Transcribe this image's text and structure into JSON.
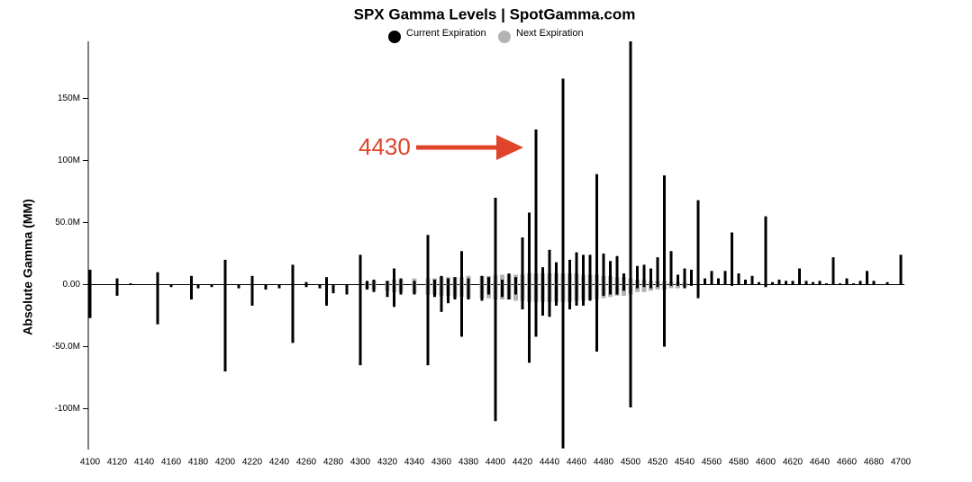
{
  "chart_data": {
    "type": "bar",
    "title": "SPX Gamma Levels | SpotGamma.com",
    "y_label": "Absolute Gamma (MM)",
    "annotation": "4430",
    "annotation_color": "#e0442a",
    "x": [
      4100,
      4120,
      4130,
      4150,
      4160,
      4175,
      4180,
      4190,
      4200,
      4210,
      4220,
      4230,
      4240,
      4250,
      4260,
      4270,
      4275,
      4280,
      4290,
      4300,
      4305,
      4310,
      4320,
      4325,
      4330,
      4340,
      4350,
      4355,
      4360,
      4365,
      4370,
      4375,
      4380,
      4390,
      4395,
      4400,
      4405,
      4410,
      4415,
      4420,
      4425,
      4430,
      4435,
      4440,
      4445,
      4450,
      4455,
      4460,
      4465,
      4470,
      4475,
      4480,
      4485,
      4490,
      4495,
      4500,
      4505,
      4510,
      4515,
      4520,
      4525,
      4530,
      4535,
      4540,
      4545,
      4550,
      4555,
      4560,
      4565,
      4570,
      4575,
      4580,
      4585,
      4590,
      4595,
      4600,
      4605,
      4610,
      4615,
      4620,
      4625,
      4630,
      4635,
      4640,
      4645,
      4650,
      4655,
      4660,
      4665,
      4670,
      4675,
      4680,
      4690,
      4700
    ],
    "series": [
      {
        "name": "Next Expiration",
        "color": "#b3b3b3",
        "values": [
          null,
          null,
          null,
          null,
          null,
          null,
          null,
          null,
          null,
          null,
          null,
          null,
          null,
          null,
          null,
          null,
          null,
          null,
          null,
          null,
          2,
          3,
          3,
          4,
          4,
          5,
          5,
          5,
          6,
          6,
          6,
          6,
          7,
          7,
          7,
          8,
          8,
          8,
          8,
          8,
          9,
          9,
          9,
          9,
          9,
          9,
          9,
          9,
          8,
          8,
          8,
          7,
          7,
          6,
          6,
          5,
          4,
          4,
          3,
          3,
          3,
          2,
          2,
          2,
          null,
          null,
          null,
          null,
          null,
          null,
          null,
          null,
          null,
          null,
          null,
          null,
          null,
          null,
          null,
          null,
          null,
          null,
          null,
          null,
          null,
          null,
          null,
          null,
          null,
          null,
          null,
          null,
          null,
          null
        ],
        "put_values": [
          null,
          null,
          null,
          null,
          null,
          null,
          null,
          null,
          null,
          null,
          null,
          null,
          null,
          null,
          null,
          null,
          null,
          null,
          null,
          null,
          -3,
          -4,
          -5,
          -6,
          -6,
          -7,
          -8,
          -8,
          -9,
          -9,
          -10,
          -10,
          -11,
          -11,
          -11,
          -12,
          -12,
          -12,
          -13,
          -13,
          -14,
          -14,
          -14,
          -14,
          -14,
          -14,
          -14,
          -13,
          -13,
          -12,
          -12,
          -11,
          -10,
          -9,
          -9,
          -8,
          -6,
          -6,
          -5,
          -4,
          -4,
          -3,
          -3,
          -2,
          null,
          null,
          null,
          null,
          null,
          null,
          null,
          null,
          null,
          null,
          null,
          null,
          null,
          null,
          null,
          null,
          null,
          null,
          null,
          null,
          null,
          null,
          null,
          null,
          null,
          null,
          null,
          null,
          null,
          null
        ]
      },
      {
        "name": "Current Expiration",
        "color": "#000000",
        "values": [
          12,
          5,
          1,
          10,
          0,
          7,
          0,
          0,
          20,
          0,
          7,
          0,
          0,
          16,
          2,
          0,
          6,
          0,
          0,
          24,
          3,
          4,
          3,
          13,
          5,
          3,
          40,
          4,
          7,
          5,
          6,
          27,
          5,
          7,
          6,
          70,
          4,
          9,
          6,
          38,
          58,
          125,
          14,
          28,
          18,
          166,
          20,
          26,
          24,
          24,
          89,
          25,
          19,
          23,
          9,
          196,
          15,
          16,
          13,
          22,
          88,
          27,
          8,
          13,
          12,
          68,
          5,
          11,
          5,
          11,
          42,
          9,
          4,
          7,
          2,
          55,
          2,
          4,
          3,
          3,
          13,
          3,
          2,
          3,
          1,
          22,
          1,
          5,
          1,
          3,
          11,
          3,
          2,
          24
        ],
        "put_values": [
          -27,
          -9,
          0,
          -32,
          -2,
          -12,
          -3,
          -2,
          -70,
          -3,
          -17,
          -4,
          -3,
          -47,
          -2,
          -3,
          -17,
          -7,
          -8,
          -65,
          -4,
          -6,
          -10,
          -18,
          -8,
          -8,
          -65,
          -10,
          -22,
          -15,
          -12,
          -42,
          -12,
          -13,
          -8,
          -110,
          -10,
          -12,
          -8,
          -20,
          -63,
          -42,
          -25,
          -26,
          -17,
          -132,
          -20,
          -17,
          -17,
          -13,
          -54,
          -9,
          -8,
          -8,
          -5,
          -99,
          -3,
          -2,
          -3,
          -2,
          -50,
          -1,
          -1,
          -3,
          -1,
          -11,
          0,
          0,
          0,
          0,
          -1,
          0,
          0,
          0,
          0,
          -2,
          0,
          0,
          0,
          0,
          0,
          0,
          0,
          0,
          0,
          0,
          0,
          0,
          0,
          0,
          0,
          0,
          0,
          0
        ]
      }
    ],
    "legend_order": [
      "Current Expiration",
      "Next Expiration"
    ],
    "xlim": [
      4100,
      4700
    ],
    "xticks": [
      4100,
      4120,
      4140,
      4160,
      4180,
      4200,
      4220,
      4240,
      4260,
      4280,
      4300,
      4320,
      4340,
      4360,
      4380,
      4400,
      4420,
      4440,
      4460,
      4480,
      4500,
      4520,
      4540,
      4560,
      4580,
      4600,
      4620,
      4640,
      4660,
      4680,
      4700
    ],
    "ylim": [
      -133,
      196
    ],
    "yticks": [
      {
        "value": -100,
        "label": "-100M"
      },
      {
        "value": -50,
        "label": "-50.0M"
      },
      {
        "value": 0,
        "label": "0.00"
      },
      {
        "value": 50,
        "label": "50.0M"
      },
      {
        "value": 100,
        "label": "100M"
      },
      {
        "value": 150,
        "label": "150M"
      }
    ]
  }
}
